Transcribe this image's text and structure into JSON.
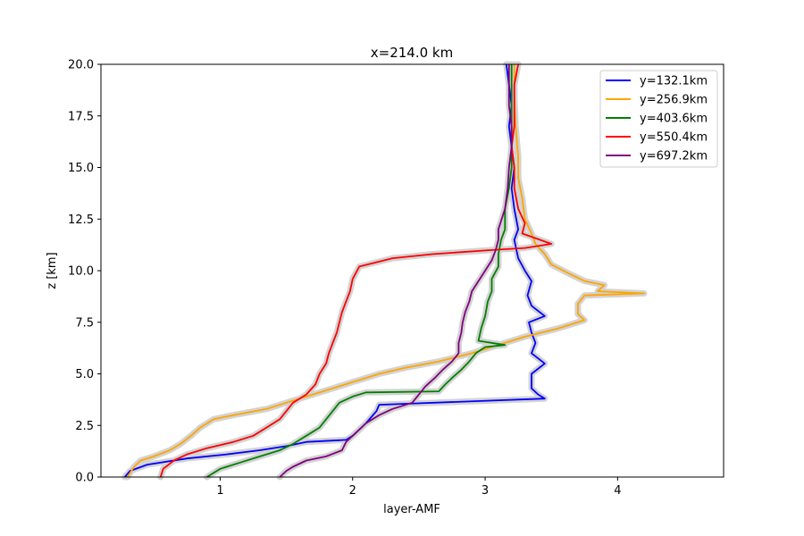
{
  "chart_data": {
    "type": "line",
    "title": "x=214.0 km",
    "xlabel": "layer-AMF",
    "ylabel": "z [km]",
    "xlim": [
      0.1,
      4.8
    ],
    "ylim": [
      0,
      20
    ],
    "xticks": [
      1,
      2,
      3,
      4
    ],
    "yticks": [
      0.0,
      2.5,
      5.0,
      7.5,
      10.0,
      12.5,
      15.0,
      17.5,
      20.0
    ],
    "xtick_labels": [
      "1",
      "2",
      "3",
      "4"
    ],
    "ytick_labels": [
      "0.0",
      "2.5",
      "5.0",
      "7.5",
      "10.0",
      "12.5",
      "15.0",
      "17.5",
      "20.0"
    ],
    "grid": false,
    "legend_position": "top-right",
    "uncertainty_band_color": "#d3d3d3",
    "series": [
      {
        "name": "y=132.1km",
        "color": "#0000ff",
        "points": [
          [
            0.28,
            0
          ],
          [
            0.32,
            0.3
          ],
          [
            0.45,
            0.6
          ],
          [
            0.75,
            0.9
          ],
          [
            1.05,
            1.1
          ],
          [
            1.3,
            1.3
          ],
          [
            1.5,
            1.5
          ],
          [
            1.65,
            1.7
          ],
          [
            1.95,
            1.8
          ],
          [
            2.0,
            2.0
          ],
          [
            2.05,
            2.3
          ],
          [
            2.1,
            2.6
          ],
          [
            2.18,
            3.2
          ],
          [
            2.2,
            3.5
          ],
          [
            3.45,
            3.8
          ],
          [
            3.4,
            4.0
          ],
          [
            3.35,
            4.3
          ],
          [
            3.35,
            5.0
          ],
          [
            3.45,
            5.5
          ],
          [
            3.35,
            6.0
          ],
          [
            3.38,
            6.5
          ],
          [
            3.35,
            7.0
          ],
          [
            3.33,
            7.5
          ],
          [
            3.45,
            7.8
          ],
          [
            3.35,
            8.3
          ],
          [
            3.32,
            8.8
          ],
          [
            3.35,
            9.5
          ],
          [
            3.3,
            10.0
          ],
          [
            3.25,
            10.6
          ],
          [
            3.22,
            11.5
          ],
          [
            3.25,
            12.0
          ],
          [
            3.22,
            13.0
          ],
          [
            3.2,
            14.0
          ],
          [
            3.22,
            15.0
          ],
          [
            3.2,
            16.0
          ],
          [
            3.18,
            17.0
          ],
          [
            3.2,
            18.0
          ],
          [
            3.18,
            19.0
          ],
          [
            3.16,
            20.0
          ]
        ]
      },
      {
        "name": "y=256.9km",
        "color": "#ffa500",
        "points": [
          [
            0.3,
            0
          ],
          [
            0.35,
            0.5
          ],
          [
            0.4,
            0.8
          ],
          [
            0.5,
            1.0
          ],
          [
            0.62,
            1.3
          ],
          [
            0.7,
            1.6
          ],
          [
            0.78,
            2.0
          ],
          [
            0.85,
            2.4
          ],
          [
            0.95,
            2.8
          ],
          [
            1.1,
            3.0
          ],
          [
            1.35,
            3.3
          ],
          [
            1.5,
            3.6
          ],
          [
            1.65,
            3.9
          ],
          [
            1.85,
            4.3
          ],
          [
            2.0,
            4.6
          ],
          [
            2.2,
            5.0
          ],
          [
            2.4,
            5.3
          ],
          [
            2.65,
            5.6
          ],
          [
            2.9,
            6.0
          ],
          [
            3.1,
            6.4
          ],
          [
            3.3,
            6.8
          ],
          [
            3.55,
            7.2
          ],
          [
            3.75,
            7.6
          ],
          [
            3.7,
            7.9
          ],
          [
            3.7,
            8.4
          ],
          [
            3.75,
            8.8
          ],
          [
            4.2,
            8.9
          ],
          [
            3.85,
            9.0
          ],
          [
            3.9,
            9.3
          ],
          [
            3.75,
            9.5
          ],
          [
            3.65,
            9.8
          ],
          [
            3.5,
            10.3
          ],
          [
            3.45,
            10.8
          ],
          [
            3.38,
            11.3
          ],
          [
            3.35,
            11.8
          ],
          [
            3.3,
            12.5
          ],
          [
            3.28,
            13.5
          ],
          [
            3.25,
            14.5
          ],
          [
            3.25,
            15.5
          ],
          [
            3.23,
            17.0
          ],
          [
            3.22,
            18.5
          ],
          [
            3.22,
            20.0
          ]
        ]
      },
      {
        "name": "y=403.6km",
        "color": "#008000",
        "points": [
          [
            0.9,
            0
          ],
          [
            1.0,
            0.4
          ],
          [
            1.15,
            0.7
          ],
          [
            1.3,
            1.0
          ],
          [
            1.45,
            1.3
          ],
          [
            1.55,
            1.6
          ],
          [
            1.65,
            2.0
          ],
          [
            1.75,
            2.4
          ],
          [
            1.8,
            2.8
          ],
          [
            1.85,
            3.2
          ],
          [
            1.9,
            3.6
          ],
          [
            2.0,
            3.9
          ],
          [
            2.1,
            4.1
          ],
          [
            2.65,
            4.15
          ],
          [
            2.7,
            4.5
          ],
          [
            2.75,
            4.8
          ],
          [
            2.82,
            5.2
          ],
          [
            2.88,
            5.6
          ],
          [
            2.93,
            6.0
          ],
          [
            3.0,
            6.3
          ],
          [
            3.15,
            6.4
          ],
          [
            2.95,
            6.6
          ],
          [
            2.97,
            7.2
          ],
          [
            3.0,
            7.8
          ],
          [
            3.02,
            8.5
          ],
          [
            3.05,
            9.0
          ],
          [
            3.05,
            9.6
          ],
          [
            3.1,
            10.2
          ],
          [
            3.1,
            10.8
          ],
          [
            3.12,
            11.5
          ],
          [
            3.15,
            12.0
          ],
          [
            3.15,
            13.0
          ],
          [
            3.18,
            14.0
          ],
          [
            3.2,
            15.0
          ],
          [
            3.2,
            16.0
          ],
          [
            3.2,
            17.0
          ],
          [
            3.2,
            18.0
          ],
          [
            3.2,
            19.0
          ],
          [
            3.2,
            20.0
          ]
        ]
      },
      {
        "name": "y=550.4km",
        "color": "#ff0000",
        "points": [
          [
            0.55,
            0
          ],
          [
            0.57,
            0.4
          ],
          [
            0.65,
            0.8
          ],
          [
            0.75,
            1.1
          ],
          [
            0.9,
            1.4
          ],
          [
            1.1,
            1.7
          ],
          [
            1.25,
            2.0
          ],
          [
            1.35,
            2.4
          ],
          [
            1.45,
            2.8
          ],
          [
            1.5,
            3.2
          ],
          [
            1.55,
            3.6
          ],
          [
            1.65,
            4.0
          ],
          [
            1.72,
            4.5
          ],
          [
            1.75,
            5.0
          ],
          [
            1.8,
            5.5
          ],
          [
            1.82,
            6.0
          ],
          [
            1.85,
            6.5
          ],
          [
            1.88,
            7.0
          ],
          [
            1.9,
            7.5
          ],
          [
            1.92,
            8.0
          ],
          [
            1.95,
            8.5
          ],
          [
            1.98,
            9.0
          ],
          [
            2.0,
            9.6
          ],
          [
            2.05,
            10.2
          ],
          [
            2.3,
            10.6
          ],
          [
            2.6,
            10.8
          ],
          [
            3.05,
            11.0
          ],
          [
            3.3,
            11.1
          ],
          [
            3.5,
            11.3
          ],
          [
            3.28,
            11.8
          ],
          [
            3.3,
            12.3
          ],
          [
            3.25,
            13.0
          ],
          [
            3.22,
            14.0
          ],
          [
            3.22,
            15.0
          ],
          [
            3.2,
            16.0
          ],
          [
            3.22,
            17.0
          ],
          [
            3.22,
            18.0
          ],
          [
            3.22,
            19.0
          ],
          [
            3.25,
            20.0
          ]
        ]
      },
      {
        "name": "y=697.2km",
        "color": "#800080",
        "points": [
          [
            1.45,
            0
          ],
          [
            1.5,
            0.3
          ],
          [
            1.55,
            0.5
          ],
          [
            1.65,
            0.8
          ],
          [
            1.8,
            1.0
          ],
          [
            1.92,
            1.3
          ],
          [
            1.95,
            1.7
          ],
          [
            2.0,
            2.0
          ],
          [
            2.05,
            2.3
          ],
          [
            2.1,
            2.6
          ],
          [
            2.2,
            3.0
          ],
          [
            2.3,
            3.3
          ],
          [
            2.45,
            3.6
          ],
          [
            2.5,
            4.0
          ],
          [
            2.55,
            4.4
          ],
          [
            2.62,
            4.8
          ],
          [
            2.68,
            5.2
          ],
          [
            2.75,
            5.6
          ],
          [
            2.8,
            6.0
          ],
          [
            2.8,
            6.5
          ],
          [
            2.82,
            7.0
          ],
          [
            2.83,
            7.5
          ],
          [
            2.85,
            8.0
          ],
          [
            2.88,
            8.5
          ],
          [
            2.9,
            9.0
          ],
          [
            2.95,
            9.5
          ],
          [
            3.0,
            10.0
          ],
          [
            3.05,
            10.5
          ],
          [
            3.08,
            11.0
          ],
          [
            3.1,
            11.5
          ],
          [
            3.1,
            12.0
          ],
          [
            3.15,
            13.0
          ],
          [
            3.17,
            14.0
          ],
          [
            3.18,
            15.0
          ],
          [
            3.2,
            16.0
          ],
          [
            3.2,
            17.0
          ],
          [
            3.18,
            18.0
          ],
          [
            3.18,
            19.0
          ],
          [
            3.18,
            20.0
          ]
        ]
      }
    ]
  }
}
